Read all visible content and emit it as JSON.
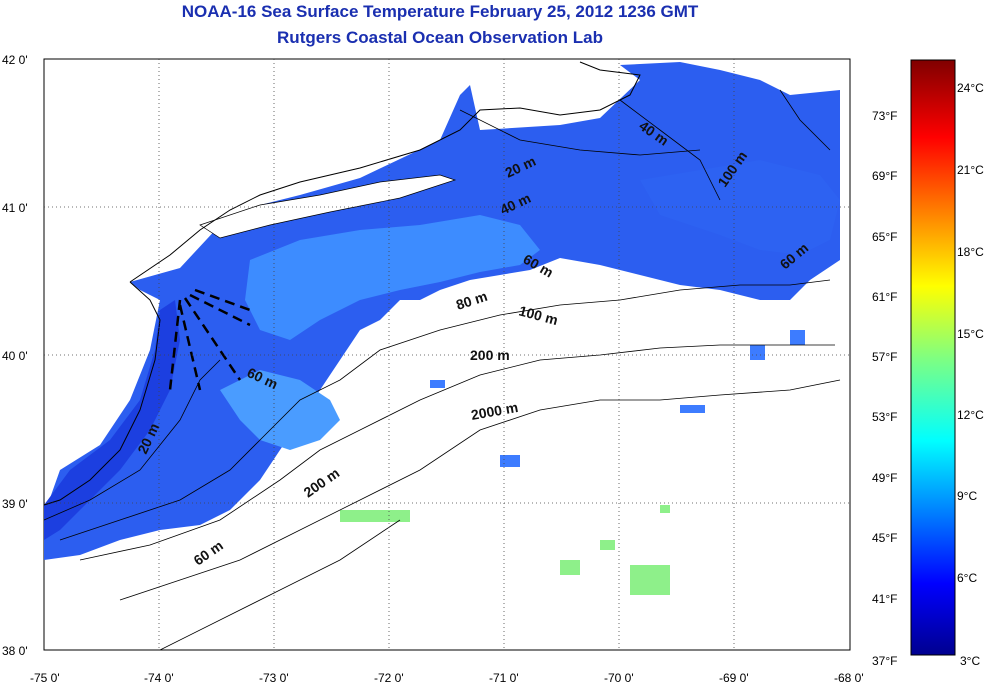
{
  "title": {
    "line1": "NOAA-16 Sea Surface Temperature February 25, 2012 1236 GMT",
    "line2": "Rutgers Coastal Ocean Observation Lab"
  },
  "lon_ticks": [
    "-75 0'",
    "-74 0'",
    "-73 0'",
    "-72 0'",
    "-71 0'",
    "-70 0'",
    "-69 0'",
    "-68 0'"
  ],
  "lat_ticks": [
    "42 0'",
    "41 0'",
    "40 0'",
    "39 0'",
    "38 0'"
  ],
  "contour_labels": [
    "40 m",
    "20 m",
    "100 m",
    "40 m",
    "60 m",
    "60 m",
    "80 m",
    "100 m",
    "200 m",
    "60 m",
    "2000 m",
    "20 m",
    "200 m",
    "60 m"
  ],
  "colorbar": {
    "fahrenheit": [
      "73°F",
      "69°F",
      "65°F",
      "61°F",
      "57°F",
      "53°F",
      "49°F",
      "45°F",
      "41°F",
      "37°F"
    ],
    "celsius": [
      "24°C",
      "21°C",
      "18°C",
      "15°C",
      "12°C",
      "9°C",
      "6°C",
      "3°C"
    ]
  },
  "colors": {
    "title": "#1a2fb0",
    "water_warm": "#3d8cff",
    "water_cold": "#1c3fe0",
    "accent_green": "#8ef08a"
  }
}
